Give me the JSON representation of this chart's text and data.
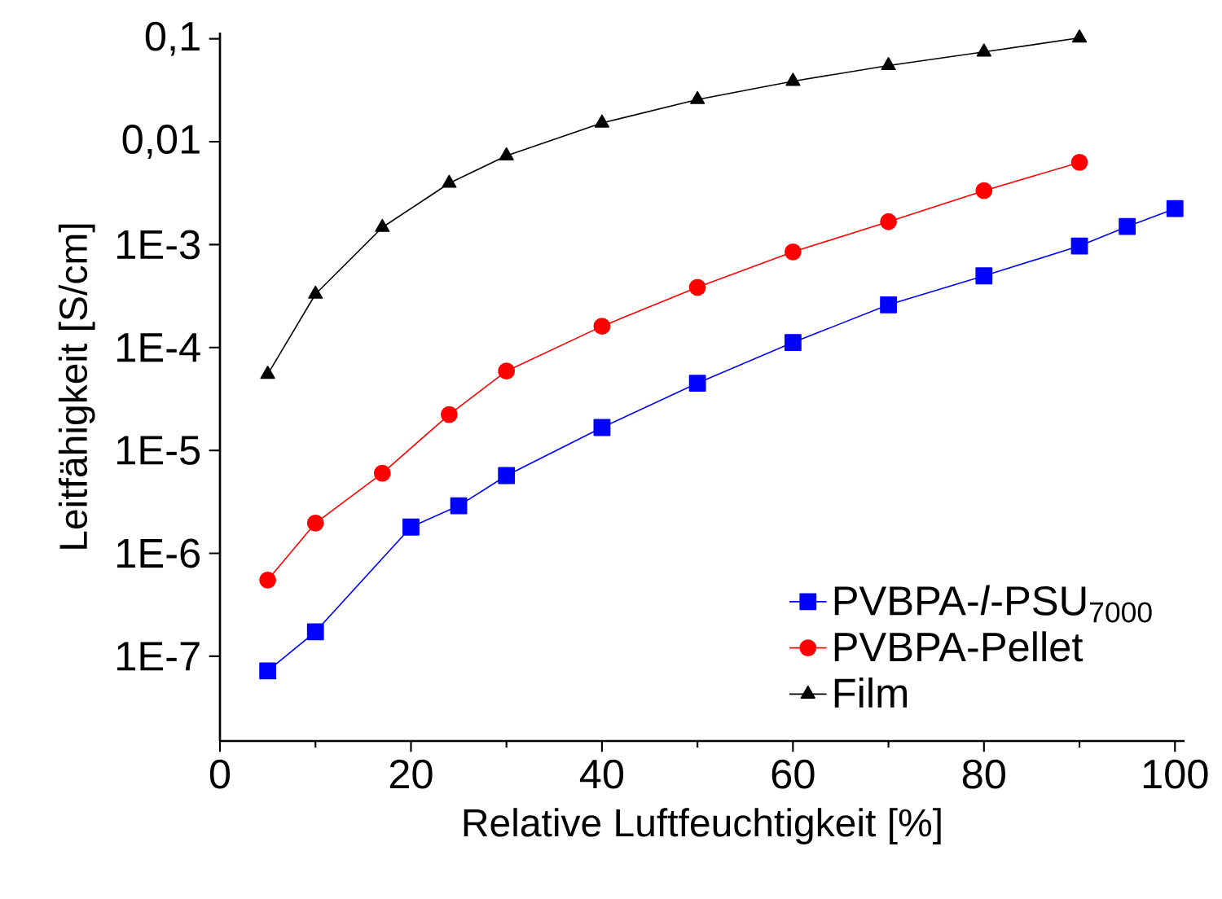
{
  "chart_data": {
    "type": "line",
    "xlabel": "Relative Luftfeuchtigkeit [%]",
    "ylabel": "Leitfähigkeit [S/cm]",
    "log": "y",
    "xlim": [
      0,
      101
    ],
    "ylim": [
      1.5e-08,
      0.115
    ],
    "xticks": [
      0,
      20,
      40,
      60,
      80,
      100
    ],
    "yticks": [
      {
        "value": 1e-07,
        "label": "1E-7"
      },
      {
        "value": 1e-06,
        "label": "1E-6"
      },
      {
        "value": 1e-05,
        "label": "1E-5"
      },
      {
        "value": 0.0001,
        "label": "1E-4"
      },
      {
        "value": 0.001,
        "label": "1E-3"
      },
      {
        "value": 0.01,
        "label": "0,01"
      },
      {
        "value": 0.1,
        "label": "0,1"
      }
    ],
    "legend": "bottom right",
    "grid": false,
    "series": [
      {
        "name": "PVBPA-*l*-PSU$_{7000}$",
        "color": "#0000ff",
        "marker": "square",
        "x": [
          5,
          10,
          20,
          25,
          30,
          40,
          50,
          60,
          70,
          80,
          90,
          95,
          100
        ],
        "values": [
          7.2e-08,
          1.73e-07,
          1.8e-06,
          2.9e-06,
          5.7e-06,
          1.67e-05,
          4.5e-05,
          0.000112,
          0.00026,
          0.000497,
          0.00097,
          0.0015,
          0.00224
        ]
      },
      {
        "name": "PVBPA-Pellet",
        "color": "#ff0000",
        "marker": "circle",
        "x": [
          5,
          10,
          17,
          24,
          30,
          40,
          50,
          60,
          70,
          80,
          90
        ],
        "values": [
          5.5e-07,
          1.97e-06,
          6e-06,
          2.23e-05,
          5.9e-05,
          0.000161,
          0.000385,
          0.00085,
          0.00167,
          0.00334,
          0.0063
        ]
      },
      {
        "name": "Film",
        "color": "#000000",
        "marker": "triangle",
        "x": [
          5,
          10,
          17,
          24,
          30,
          40,
          50,
          60,
          70,
          80,
          90
        ],
        "values": [
          5.5e-05,
          0.00033,
          0.00147,
          0.00395,
          0.0073,
          0.0152,
          0.0257,
          0.0387,
          0.055,
          0.0745,
          0.102
        ]
      }
    ]
  }
}
